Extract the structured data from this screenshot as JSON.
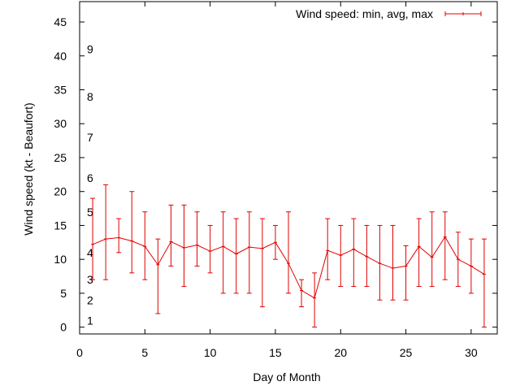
{
  "chart_data": {
    "type": "line",
    "xlabel": "Day of Month",
    "ylabel": "Wind speed (kt - Beaufort)",
    "xlim": [
      0,
      32
    ],
    "ylim": [
      -1,
      48
    ],
    "xticks": [
      0,
      5,
      10,
      15,
      20,
      25,
      30
    ],
    "yticks": [
      0,
      5,
      10,
      15,
      20,
      25,
      30,
      35,
      40,
      45
    ],
    "grid": false,
    "legend_position": "top-right",
    "series": [
      {
        "name": "Wind speed: min, avg, max",
        "color": "#e00000",
        "style": "line-with-error-bars",
        "x": [
          1,
          2,
          3,
          4,
          5,
          6,
          7,
          8,
          9,
          10,
          11,
          12,
          13,
          14,
          15,
          16,
          17,
          18,
          19,
          20,
          21,
          22,
          23,
          24,
          25,
          26,
          27,
          28,
          29,
          30,
          31
        ],
        "avg": [
          12.2,
          13.0,
          13.2,
          12.7,
          11.9,
          9.2,
          12.6,
          11.7,
          12.1,
          11.2,
          11.9,
          10.8,
          11.8,
          11.6,
          12.5,
          9.4,
          5.4,
          4.3,
          11.3,
          10.6,
          11.5,
          10.4,
          9.4,
          8.7,
          9.0,
          11.9,
          10.3,
          13.3,
          10.0,
          9.0,
          7.8
        ],
        "min": [
          7,
          7,
          11,
          8,
          7,
          2,
          9,
          6,
          9,
          8,
          5,
          5,
          5,
          3,
          10,
          5,
          3,
          0,
          7,
          6,
          6,
          6,
          4,
          4,
          4,
          6,
          6,
          7,
          6,
          5,
          0
        ],
        "max": [
          19,
          21,
          16,
          20,
          17,
          13,
          18,
          18,
          17,
          15,
          17,
          16,
          17,
          16,
          15,
          17,
          7,
          8,
          16,
          15,
          16,
          15,
          15,
          15,
          12,
          16,
          17,
          17,
          14,
          13,
          13
        ]
      }
    ],
    "beaufort_labels": [
      {
        "label": "1",
        "y": 1.0
      },
      {
        "label": "2",
        "y": 4.0
      },
      {
        "label": "3",
        "y": 7.0
      },
      {
        "label": "4",
        "y": 11.0
      },
      {
        "label": "5",
        "y": 17.0
      },
      {
        "label": "6",
        "y": 22.0
      },
      {
        "label": "7",
        "y": 28.0
      },
      {
        "label": "8",
        "y": 34.0
      },
      {
        "label": "9",
        "y": 41.0
      }
    ]
  }
}
